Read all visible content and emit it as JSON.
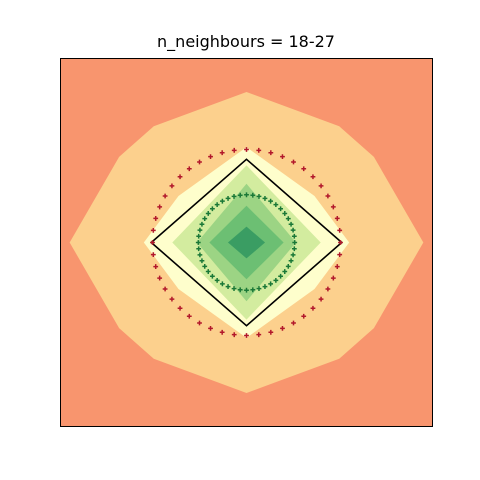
{
  "chart_data": {
    "type": "contour",
    "title": "n_neighbours = 18-27",
    "xlabel": "",
    "ylabel": "",
    "xlim": [
      -1.5,
      1.5
    ],
    "ylim": [
      -1.5,
      1.5
    ],
    "axis_ticks": "none",
    "grid": false,
    "contour_levels": [
      {
        "name": "level-0",
        "color": "#f8956e",
        "polygon": [
          [
            -1.5,
            -1.5
          ],
          [
            1.5,
            -1.5
          ],
          [
            1.5,
            1.5
          ],
          [
            -1.5,
            1.5
          ]
        ]
      },
      {
        "name": "level-1",
        "color": "#fcd08d",
        "polygon": [
          [
            0,
            1.23
          ],
          [
            0.75,
            0.95
          ],
          [
            1.03,
            0.7
          ],
          [
            1.43,
            0
          ],
          [
            1.03,
            -0.7
          ],
          [
            0.75,
            -0.95
          ],
          [
            0,
            -1.23
          ],
          [
            -0.75,
            -0.95
          ],
          [
            -1.03,
            -0.7
          ],
          [
            -1.43,
            0
          ],
          [
            -1.03,
            0.7
          ],
          [
            -0.75,
            0.95
          ]
        ]
      },
      {
        "name": "level-2",
        "color": "#fefecc",
        "polygon": [
          [
            0,
            0.78
          ],
          [
            0.55,
            0.38
          ],
          [
            0.83,
            0
          ],
          [
            0.55,
            -0.38
          ],
          [
            0,
            -0.78
          ],
          [
            -0.55,
            -0.38
          ],
          [
            -0.83,
            0
          ],
          [
            -0.55,
            0.38
          ]
        ]
      },
      {
        "name": "level-3",
        "color": "#d3ec9f",
        "polygon": [
          [
            0,
            0.63
          ],
          [
            0.6,
            0
          ],
          [
            0,
            -0.63
          ],
          [
            -0.6,
            0
          ]
        ]
      },
      {
        "name": "level-4",
        "color": "#9cd484",
        "polygon": [
          [
            0,
            0.48
          ],
          [
            0.4,
            0
          ],
          [
            0,
            -0.48
          ],
          [
            -0.4,
            0
          ]
        ]
      },
      {
        "name": "level-5",
        "color": "#6cbf73",
        "polygon": [
          [
            0,
            0.3
          ],
          [
            0.3,
            0
          ],
          [
            0,
            -0.3
          ],
          [
            -0.3,
            0
          ]
        ]
      },
      {
        "name": "level-6",
        "color": "#3a9d63",
        "polygon": [
          [
            0,
            0.13
          ],
          [
            0.15,
            0
          ],
          [
            0,
            -0.13
          ],
          [
            -0.15,
            0
          ]
        ]
      }
    ],
    "diamond": {
      "color": "#000000",
      "vertices": [
        [
          0,
          0.68
        ],
        [
          0.77,
          0
        ],
        [
          0,
          -0.68
        ],
        [
          -0.77,
          0
        ]
      ]
    },
    "marker_rings": [
      {
        "name": "outer-ring",
        "color": "#b2182b",
        "radius": 0.76,
        "count": 48
      },
      {
        "name": "inner-ring",
        "color": "#1a7837",
        "radius": 0.39,
        "count": 48
      }
    ]
  }
}
